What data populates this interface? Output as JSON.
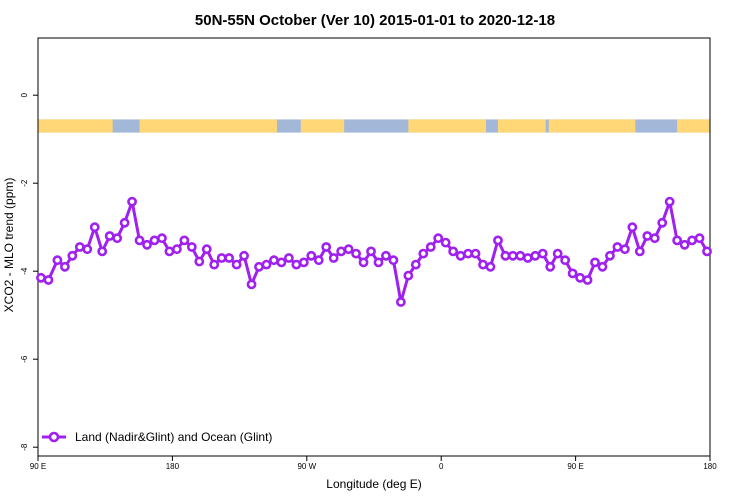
{
  "chart_data": {
    "type": "line",
    "title": "50N-55N October (Ver 10)   2015-01-01 to 2020-12-18",
    "xlabel": "Longitude (deg E)",
    "ylabel": "XCO2 - MLO trend (ppm)",
    "x_ticks": [
      {
        "value": 90,
        "label": "90 E"
      },
      {
        "value": 180,
        "label": "180"
      },
      {
        "value": 270,
        "label": "90 W"
      },
      {
        "value": 360,
        "label": "0"
      },
      {
        "value": 450,
        "label": "90 E"
      },
      {
        "value": 540,
        "label": "180"
      }
    ],
    "y_ticks": [
      0,
      -2,
      -4,
      -6,
      -8
    ],
    "xlim": [
      90,
      540
    ],
    "ylim": [
      -8.2,
      1.3
    ],
    "grid": false,
    "legend_position": "bottom-left",
    "land_sea_strip": {
      "y_range": [
        -0.85,
        -0.55
      ],
      "land_color": "#FFD777",
      "ocean_color": "#A3B8D8",
      "land_segments": [
        [
          90,
          140
        ],
        [
          158,
          250
        ],
        [
          266,
          295
        ],
        [
          338,
          390
        ],
        [
          398,
          430
        ],
        [
          432,
          490
        ],
        [
          518,
          540
        ]
      ]
    },
    "series": [
      {
        "name": "Land (Nadir&Glint) and Ocean (Glint)",
        "color": "#A020F0",
        "x": [
          92,
          97,
          103,
          108,
          113,
          118,
          123,
          128,
          133,
          138,
          143,
          148,
          153,
          158,
          163,
          168,
          173,
          178,
          183,
          188,
          193,
          198,
          203,
          208,
          213,
          218,
          223,
          228,
          233,
          238,
          243,
          248,
          253,
          258,
          263,
          268,
          273,
          278,
          283,
          288,
          293,
          298,
          303,
          308,
          313,
          318,
          323,
          328,
          333,
          338,
          343,
          348,
          353,
          358,
          363,
          368,
          373,
          378,
          383,
          388,
          393,
          398,
          403,
          408,
          413,
          418,
          423,
          428,
          433,
          438,
          443,
          448,
          453,
          458,
          463,
          468,
          473,
          478,
          483,
          488,
          493,
          498,
          503,
          508,
          513,
          518,
          523,
          528,
          533,
          538
        ],
        "y": [
          -4.15,
          -4.2,
          -3.75,
          -3.9,
          -3.65,
          -3.45,
          -3.5,
          -3.0,
          -3.55,
          -3.2,
          -3.25,
          -2.9,
          -2.42,
          -3.3,
          -3.4,
          -3.3,
          -3.25,
          -3.55,
          -3.5,
          -3.3,
          -3.45,
          -3.78,
          -3.5,
          -3.85,
          -3.7,
          -3.7,
          -3.85,
          -3.65,
          -4.3,
          -3.9,
          -3.85,
          -3.75,
          -3.8,
          -3.7,
          -3.85,
          -3.8,
          -3.65,
          -3.75,
          -3.45,
          -3.7,
          -3.55,
          -3.5,
          -3.6,
          -3.8,
          -3.55,
          -3.8,
          -3.65,
          -3.75,
          -4.7,
          -4.1,
          -3.85,
          -3.6,
          -3.45,
          -3.25,
          -3.35,
          -3.55,
          -3.65,
          -3.6,
          -3.6,
          -3.85,
          -3.9,
          -3.3,
          -3.65,
          -3.65,
          -3.65,
          -3.7,
          -3.65,
          -3.6,
          -3.9,
          -3.6,
          -3.75,
          -4.05,
          -4.15,
          -4.2,
          -3.8,
          -3.9,
          -3.65,
          -3.45,
          -3.5,
          -3.0,
          -3.55,
          -3.2,
          -3.25,
          -2.9,
          -2.42,
          -3.3,
          -3.4,
          -3.3,
          -3.25,
          -3.55
        ]
      }
    ]
  }
}
